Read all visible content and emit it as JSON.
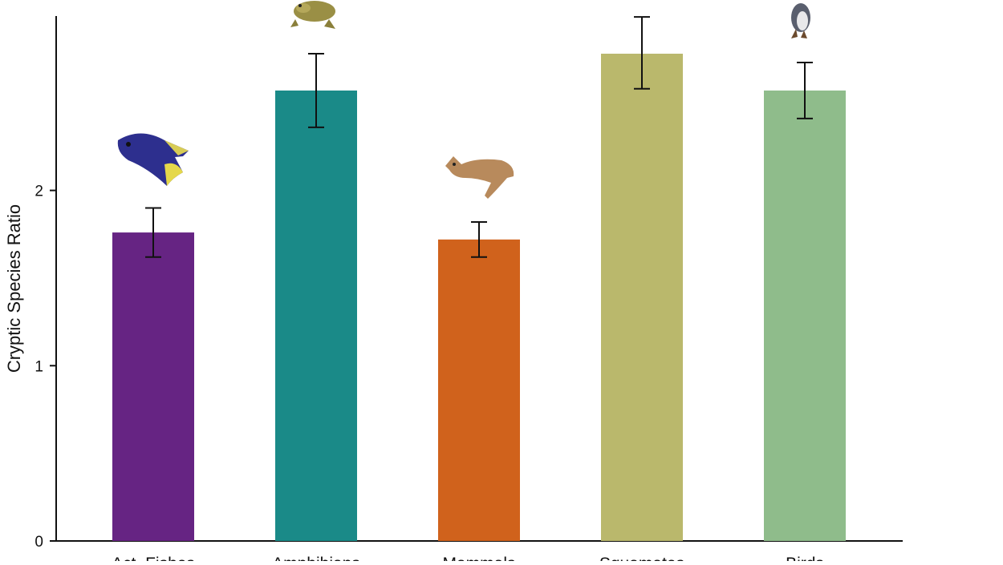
{
  "chart_data": {
    "type": "bar",
    "title": "",
    "xlabel": "",
    "ylabel": "Cryptic Species Ratio",
    "ylim": [
      0,
      3
    ],
    "yticks": [
      "0",
      "1",
      "2"
    ],
    "categories": [
      "Act. Fishes",
      "Amphibians",
      "Mammals",
      "Squamates",
      "Birds"
    ],
    "values": [
      1.76,
      2.57,
      1.72,
      2.78,
      2.57
    ],
    "error_low": [
      1.62,
      2.36,
      1.62,
      2.58,
      2.41
    ],
    "error_high": [
      1.9,
      2.78,
      1.82,
      2.99,
      2.73
    ],
    "colors": [
      "#662483",
      "#1a8a88",
      "#d0621c",
      "#bab86c",
      "#8fbc8b"
    ],
    "icons": [
      "fish-icon",
      "frog-icon",
      "lynx-icon",
      "lizard-icon",
      "bird-icon"
    ],
    "grid": false,
    "legend": "none"
  }
}
